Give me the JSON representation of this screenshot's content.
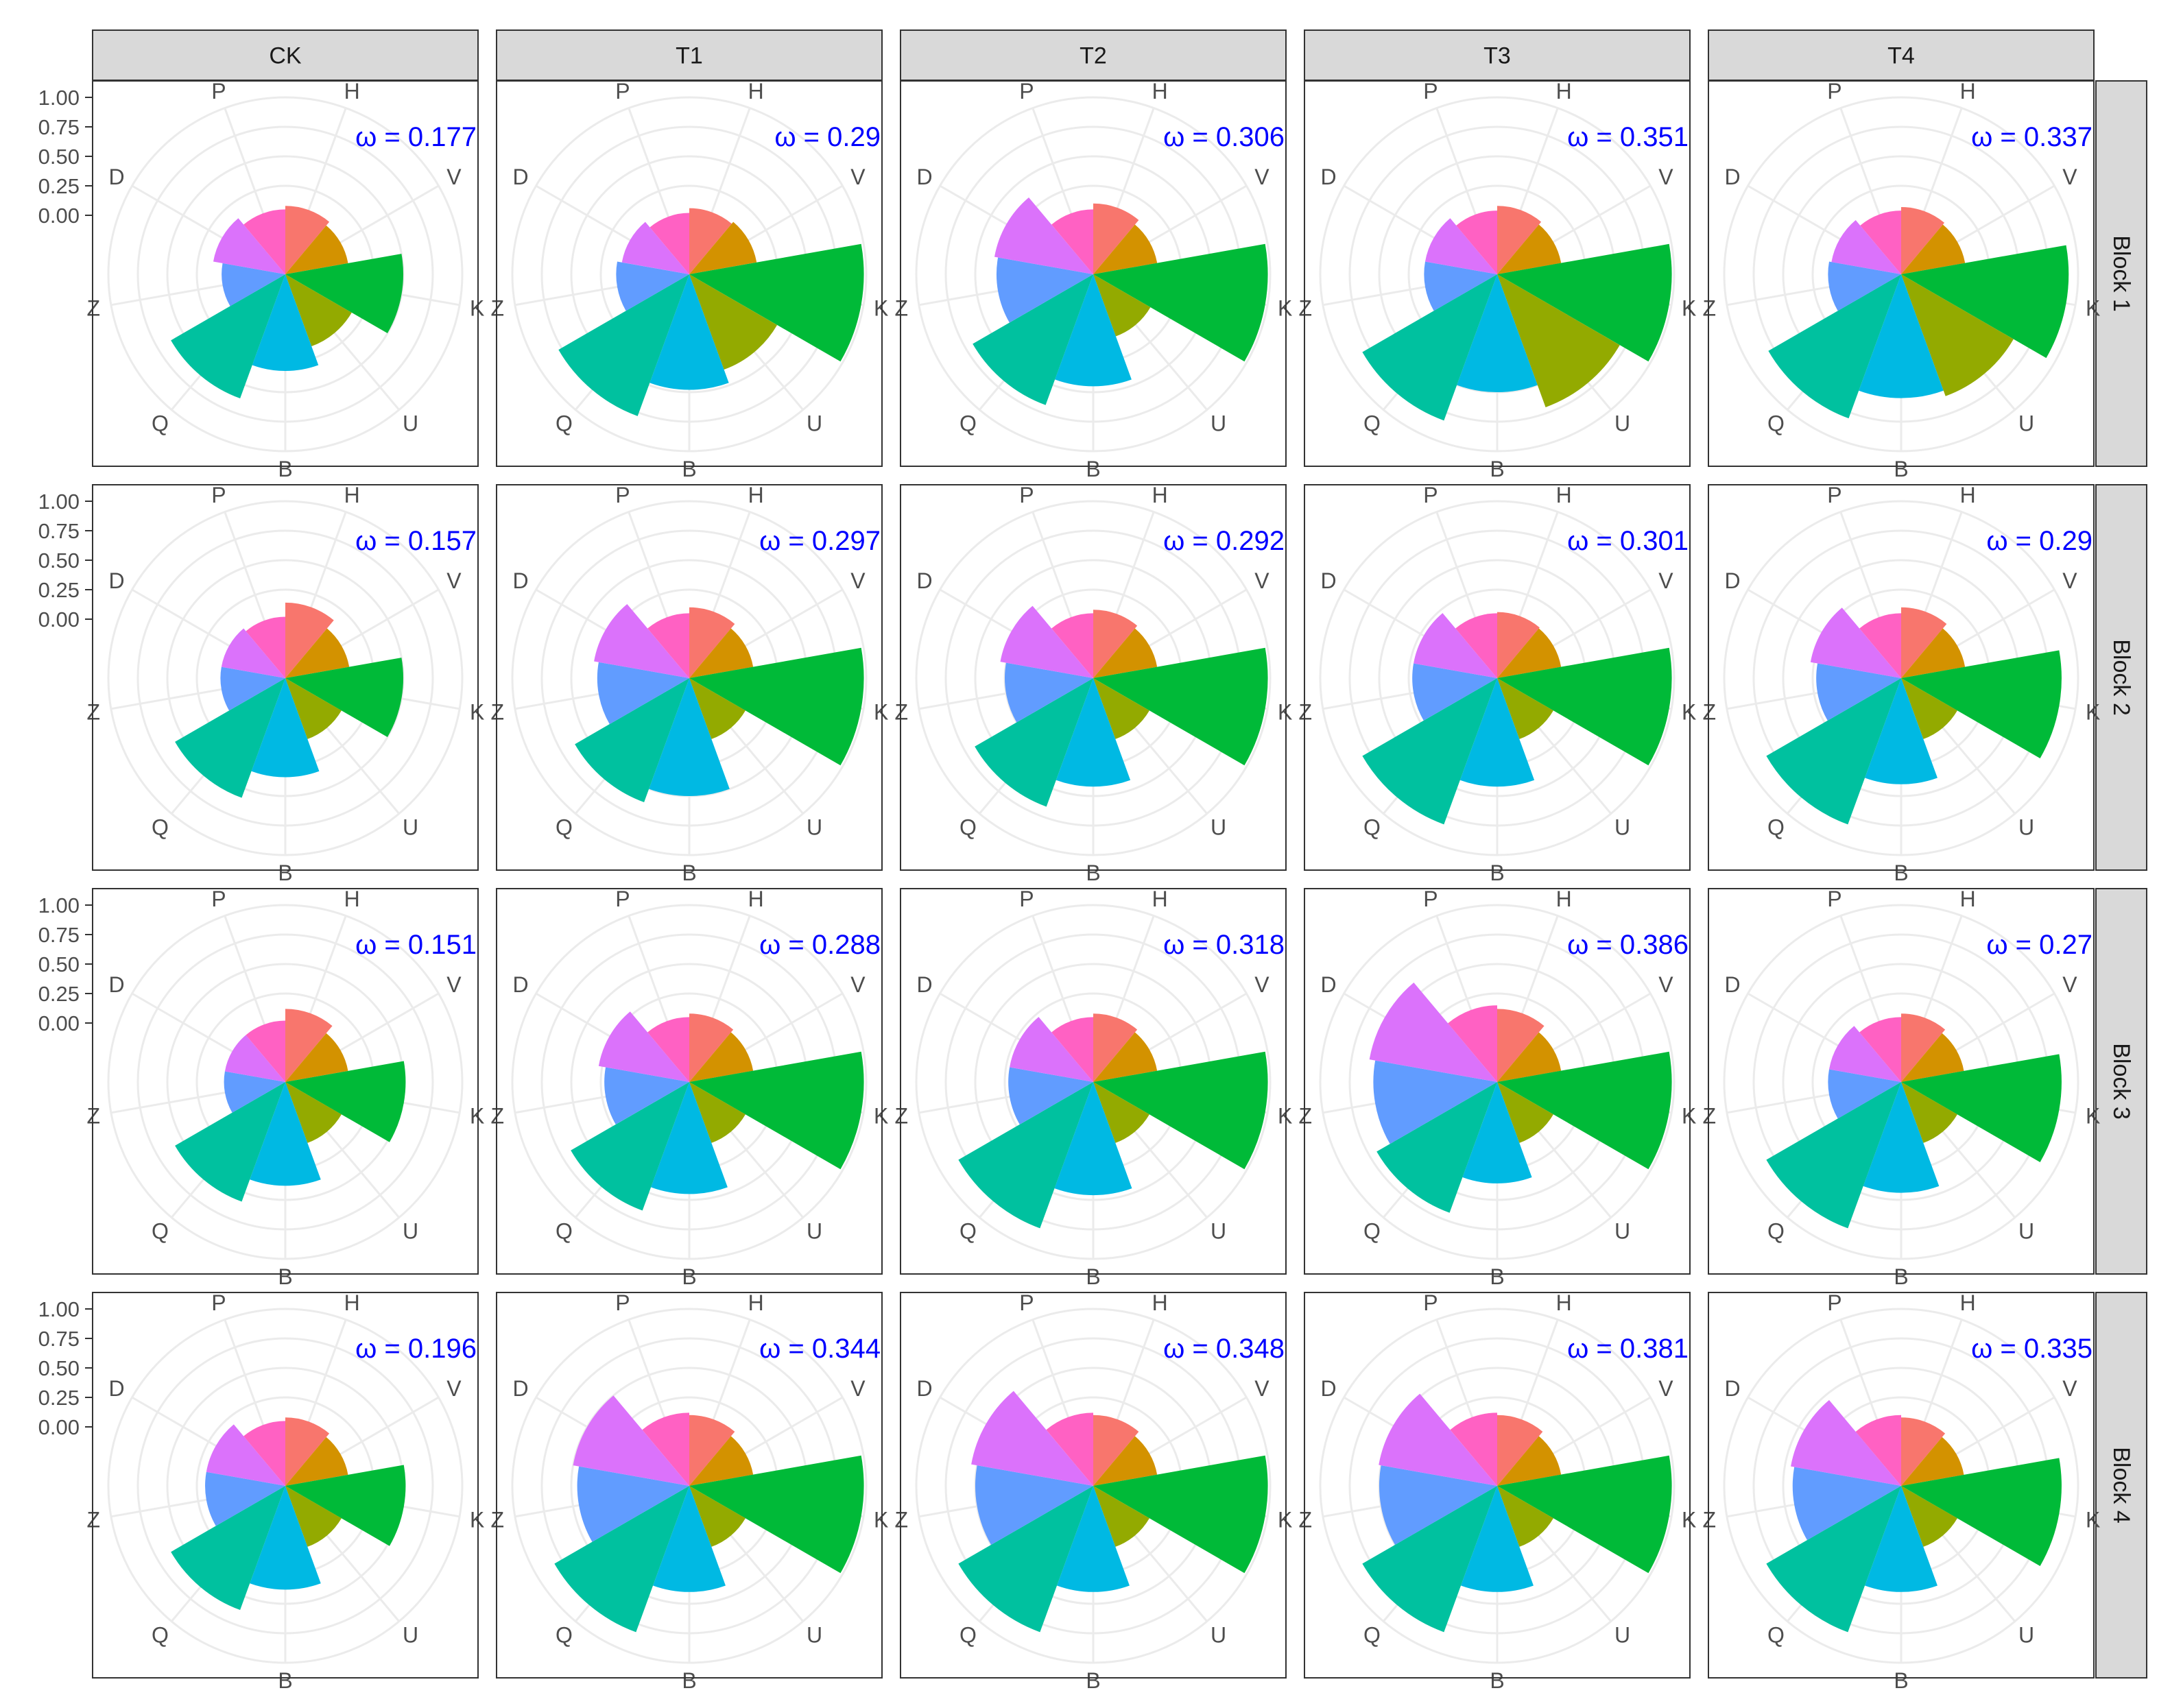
{
  "chart_data": {
    "type": "polar-bar",
    "categories": [
      "H",
      "V",
      "K",
      "U",
      "B",
      "Q",
      "Z",
      "D",
      "P"
    ],
    "category_colors": [
      "#F8766D",
      "#D39200",
      "#00BA38",
      "#93AA00",
      "#00B9E3",
      "#00C19F",
      "#619CFF",
      "#DB72FB",
      "#FF61C3"
    ],
    "column_headers": [
      "CK",
      "T1",
      "T2",
      "T3",
      "T4"
    ],
    "row_headers": [
      "Block 1",
      "Block 2",
      "Block 3",
      "Block 4"
    ],
    "y_ticks": [
      "1.00",
      "0.75",
      "0.50",
      "0.25",
      "0.00"
    ],
    "ylim": [
      -0.5,
      1.0
    ],
    "omega_prefix": "ω = ",
    "label_color": "#0000FF",
    "panels": [
      [
        {
          "omega": "0.177",
          "values": [
            0.08,
            0.04,
            0.5,
            0.15,
            0.32,
            0.62,
            0.04,
            0.12,
            0.05
          ]
        },
        {
          "omega": "0.29",
          "values": [
            0.06,
            0.08,
            0.98,
            0.36,
            0.48,
            0.78,
            0.12,
            0.08,
            0.02
          ]
        },
        {
          "omega": "0.306",
          "values": [
            0.1,
            0.05,
            0.98,
            0.06,
            0.45,
            0.68,
            0.32,
            0.35,
            0.05
          ]
        },
        {
          "omega": "0.351",
          "values": [
            0.08,
            0.05,
            0.98,
            0.7,
            0.5,
            0.82,
            0.12,
            0.12,
            0.04
          ]
        },
        {
          "omega": "0.337",
          "values": [
            0.07,
            0.05,
            0.92,
            0.6,
            0.55,
            0.8,
            0.12,
            0.1,
            0.04
          ]
        }
      ],
      [
        {
          "omega": "0.157",
          "values": [
            0.14,
            0.05,
            0.5,
            0.05,
            0.34,
            0.58,
            0.05,
            0.05,
            0.02
          ]
        },
        {
          "omega": "0.297",
          "values": [
            0.1,
            0.05,
            0.98,
            0.05,
            0.5,
            0.62,
            0.28,
            0.32,
            0.05
          ]
        },
        {
          "omega": "0.292",
          "values": [
            0.08,
            0.05,
            0.98,
            0.05,
            0.42,
            0.66,
            0.25,
            0.3,
            0.05
          ]
        },
        {
          "omega": "0.301",
          "values": [
            0.06,
            0.05,
            0.98,
            0.05,
            0.42,
            0.82,
            0.22,
            0.22,
            0.05
          ]
        },
        {
          "omega": "0.29",
          "values": [
            0.1,
            0.05,
            0.86,
            0.05,
            0.4,
            0.82,
            0.22,
            0.28,
            0.05
          ]
        }
      ],
      [
        {
          "omega": "0.151",
          "values": [
            0.12,
            0.04,
            0.52,
            0.05,
            0.38,
            0.58,
            0.02,
            0.02,
            0.02
          ]
        },
        {
          "omega": "0.288",
          "values": [
            0.08,
            0.05,
            0.98,
            0.05,
            0.45,
            0.66,
            0.22,
            0.28,
            0.05
          ]
        },
        {
          "omega": "0.318",
          "values": [
            0.08,
            0.05,
            0.98,
            0.05,
            0.46,
            0.82,
            0.22,
            0.22,
            0.05
          ]
        },
        {
          "omega": "0.386",
          "values": [
            0.12,
            0.05,
            0.98,
            0.05,
            0.36,
            0.68,
            0.55,
            0.6,
            0.15
          ]
        },
        {
          "omega": "0.27",
          "values": [
            0.08,
            0.04,
            0.86,
            0.05,
            0.44,
            0.82,
            0.12,
            0.12,
            0.05
          ]
        }
      ],
      [
        {
          "omega": "0.196",
          "values": [
            0.08,
            0.04,
            0.52,
            0.05,
            0.38,
            0.62,
            0.18,
            0.18,
            0.05
          ]
        },
        {
          "omega": "0.344",
          "values": [
            0.1,
            0.05,
            0.98,
            0.05,
            0.4,
            0.82,
            0.45,
            0.5,
            0.12
          ]
        },
        {
          "omega": "0.348",
          "values": [
            0.1,
            0.05,
            0.98,
            0.05,
            0.4,
            0.82,
            0.5,
            0.55,
            0.12
          ]
        },
        {
          "omega": "0.381",
          "values": [
            0.1,
            0.05,
            0.98,
            0.05,
            0.4,
            0.82,
            0.5,
            0.52,
            0.12
          ]
        },
        {
          "omega": "0.335",
          "values": [
            0.08,
            0.04,
            0.86,
            0.05,
            0.4,
            0.82,
            0.42,
            0.45,
            0.1
          ]
        }
      ]
    ],
    "grid": true,
    "legend": "none"
  }
}
